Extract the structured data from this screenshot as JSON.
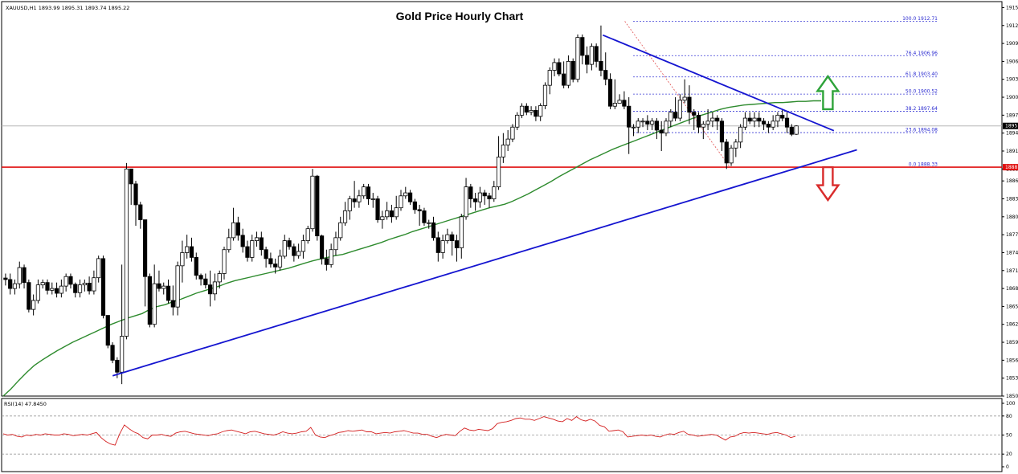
{
  "header": {
    "symbol_ohlc": "XAUUSD,H1  1893.99 1895.31 1893.74 1895.22",
    "rsi_label": "RSI(14) 47.8450"
  },
  "chart_data": {
    "type": "candlestick",
    "title": "Gold Price Hourly Chart",
    "y_range": [
      1850,
      1916
    ],
    "price_ticks": [
      "1915",
      "1912",
      "1909",
      "1906",
      "1903",
      "1900",
      "1897",
      "1894",
      "1891",
      "1888",
      "1886",
      "1883",
      "1880",
      "1877",
      "1874",
      "1871",
      "1868",
      "1865",
      "1862",
      "1859",
      "1856",
      "1853",
      "1850"
    ],
    "current_price_tag": "1895",
    "support_price_tag": "1888",
    "support_level": 1888.3,
    "candles": [
      [
        1869.75,
        1869.5,
        1870.5,
        1868.5
      ],
      [
        1869.5,
        1868.0,
        1870.5,
        1867.0
      ],
      [
        1868.0,
        1868.8,
        1869.5,
        1867.0
      ],
      [
        1868.8,
        1871.5,
        1872.5,
        1868.0
      ],
      [
        1871.5,
        1869.0,
        1872.0,
        1868.0
      ],
      [
        1869.0,
        1864.5,
        1869.5,
        1864.0
      ],
      [
        1864.5,
        1866.0,
        1867.0,
        1863.5
      ],
      [
        1866.0,
        1868.6,
        1869.5,
        1865.5
      ],
      [
        1868.6,
        1869.0,
        1869.5,
        1868.0
      ],
      [
        1869.0,
        1867.7,
        1869.5,
        1867.0
      ],
      [
        1867.7,
        1868.0,
        1869.0,
        1867.0
      ],
      [
        1868.0,
        1867.2,
        1869.0,
        1866.5
      ],
      [
        1867.2,
        1868.4,
        1869.5,
        1866.5
      ],
      [
        1868.4,
        1870.0,
        1870.5,
        1867.5
      ],
      [
        1870.0,
        1868.7,
        1870.5,
        1868.0
      ],
      [
        1868.7,
        1867.3,
        1869.0,
        1866.5
      ],
      [
        1867.3,
        1868.6,
        1869.5,
        1866.5
      ],
      [
        1868.6,
        1868.9,
        1869.5,
        1867.5
      ],
      [
        1868.9,
        1867.6,
        1870.0,
        1867.0
      ],
      [
        1867.6,
        1869.8,
        1871.0,
        1867.0
      ],
      [
        1869.8,
        1873.0,
        1873.5,
        1869.0
      ],
      [
        1873.0,
        1863.5,
        1873.5,
        1863.0
      ],
      [
        1863.5,
        1858.5,
        1863.5,
        1858.0
      ],
      [
        1858.5,
        1856.0,
        1859.0,
        1855.5
      ],
      [
        1856.0,
        1854.0,
        1856.5,
        1853.0
      ],
      [
        1854.0,
        1860.0,
        1872.0,
        1852.0
      ],
      [
        1860.0,
        1888.0,
        1889.0,
        1859.5
      ],
      [
        1888.0,
        1885.5,
        1888.0,
        1882.0
      ],
      [
        1885.5,
        1882.0,
        1886.0,
        1878.5
      ],
      [
        1882.0,
        1879.5,
        1882.5,
        1878.0
      ],
      [
        1879.5,
        1870.0,
        1879.5,
        1865.0
      ],
      [
        1870.0,
        1862.0,
        1870.5,
        1861.5
      ],
      [
        1862.0,
        1868.8,
        1872.0,
        1861.5
      ],
      [
        1868.8,
        1868.0,
        1871.0,
        1867.5
      ],
      [
        1868.0,
        1868.4,
        1869.0,
        1867.0
      ],
      [
        1868.4,
        1866.0,
        1869.5,
        1865.5
      ],
      [
        1866.0,
        1864.9,
        1868.5,
        1863.5
      ],
      [
        1864.9,
        1871.8,
        1872.5,
        1863.5
      ],
      [
        1871.8,
        1874.0,
        1876.0,
        1869.0
      ],
      [
        1874.0,
        1875.0,
        1877.0,
        1873.0
      ],
      [
        1875.0,
        1873.2,
        1876.5,
        1872.5
      ],
      [
        1873.2,
        1870.2,
        1874.0,
        1869.5
      ],
      [
        1870.2,
        1869.6,
        1870.5,
        1868.5
      ],
      [
        1869.6,
        1868.6,
        1870.5,
        1868.0
      ],
      [
        1868.6,
        1867.1,
        1871.0,
        1865.0
      ],
      [
        1867.1,
        1869.1,
        1870.5,
        1866.0
      ],
      [
        1869.1,
        1870.5,
        1871.0,
        1868.0
      ],
      [
        1870.5,
        1874.5,
        1875.0,
        1869.5
      ],
      [
        1874.5,
        1876.5,
        1878.0,
        1874.0
      ],
      [
        1876.5,
        1879.0,
        1881.5,
        1876.0
      ],
      [
        1879.0,
        1876.9,
        1880.0,
        1876.0
      ],
      [
        1876.9,
        1875.0,
        1878.0,
        1874.0
      ],
      [
        1875.0,
        1873.2,
        1876.0,
        1872.5
      ],
      [
        1873.2,
        1876.0,
        1877.0,
        1872.5
      ],
      [
        1876.0,
        1876.5,
        1877.5,
        1875.0
      ],
      [
        1876.5,
        1874.5,
        1877.5,
        1873.5
      ],
      [
        1874.5,
        1873.0,
        1875.0,
        1871.5
      ],
      [
        1873.0,
        1872.1,
        1874.0,
        1871.5
      ],
      [
        1872.1,
        1871.6,
        1873.0,
        1870.5
      ],
      [
        1871.6,
        1873.4,
        1874.5,
        1871.0
      ],
      [
        1873.4,
        1876.0,
        1877.0,
        1873.0
      ],
      [
        1876.0,
        1875.0,
        1876.5,
        1874.5
      ],
      [
        1875.0,
        1873.5,
        1875.5,
        1872.5
      ],
      [
        1873.5,
        1874.2,
        1875.5,
        1873.0
      ],
      [
        1874.2,
        1876.0,
        1877.0,
        1873.0
      ],
      [
        1876.0,
        1878.0,
        1878.5,
        1875.5
      ],
      [
        1878.0,
        1886.8,
        1888.0,
        1877.5
      ],
      [
        1886.8,
        1876.8,
        1887.0,
        1876.0
      ],
      [
        1876.8,
        1873.0,
        1877.0,
        1872.0
      ],
      [
        1873.0,
        1872.0,
        1874.5,
        1871.0
      ],
      [
        1872.0,
        1874.5,
        1875.5,
        1871.5
      ],
      [
        1874.5,
        1876.5,
        1877.5,
        1873.5
      ],
      [
        1876.5,
        1879.0,
        1880.0,
        1876.0
      ],
      [
        1879.0,
        1881.0,
        1882.5,
        1878.5
      ],
      [
        1881.0,
        1883.0,
        1883.5,
        1879.5
      ],
      [
        1883.0,
        1882.5,
        1886.0,
        1881.5
      ],
      [
        1882.5,
        1883.5,
        1884.5,
        1881.5
      ],
      [
        1883.5,
        1885.0,
        1885.5,
        1883.0
      ],
      [
        1885.0,
        1883.0,
        1885.5,
        1882.0
      ],
      [
        1883.0,
        1883.0,
        1884.0,
        1881.5
      ],
      [
        1883.0,
        1879.5,
        1883.5,
        1879.0
      ],
      [
        1879.5,
        1880.0,
        1881.0,
        1878.0
      ],
      [
        1880.0,
        1881.0,
        1882.5,
        1879.5
      ],
      [
        1881.0,
        1880.0,
        1882.0,
        1879.0
      ],
      [
        1880.0,
        1881.5,
        1883.5,
        1879.5
      ],
      [
        1881.5,
        1883.5,
        1884.5,
        1881.0
      ],
      [
        1883.5,
        1884.0,
        1885.0,
        1883.0
      ],
      [
        1884.0,
        1882.5,
        1884.5,
        1882.0
      ],
      [
        1882.5,
        1881.2,
        1883.0,
        1880.5
      ],
      [
        1881.2,
        1881.0,
        1882.0,
        1878.5
      ],
      [
        1881.0,
        1879.0,
        1881.5,
        1878.5
      ],
      [
        1879.0,
        1879.0,
        1879.5,
        1878.0
      ],
      [
        1879.0,
        1876.5,
        1880.0,
        1876.0
      ],
      [
        1876.5,
        1874.0,
        1877.5,
        1872.5
      ],
      [
        1874.0,
        1876.0,
        1877.0,
        1873.0
      ],
      [
        1876.0,
        1877.0,
        1878.0,
        1875.5
      ],
      [
        1877.0,
        1876.0,
        1877.5,
        1873.5
      ],
      [
        1876.0,
        1874.8,
        1877.0,
        1872.5
      ],
      [
        1874.8,
        1880.0,
        1880.5,
        1873.0
      ],
      [
        1880.0,
        1885.0,
        1886.5,
        1879.5
      ],
      [
        1885.0,
        1883.0,
        1885.5,
        1881.5
      ],
      [
        1883.0,
        1882.5,
        1884.0,
        1881.0
      ],
      [
        1882.5,
        1884.0,
        1885.0,
        1881.5
      ],
      [
        1884.0,
        1883.5,
        1884.5,
        1882.0
      ],
      [
        1883.5,
        1883.0,
        1884.0,
        1881.5
      ],
      [
        1883.0,
        1885.0,
        1886.0,
        1882.5
      ],
      [
        1885.0,
        1890.0,
        1893.5,
        1884.5
      ],
      [
        1890.0,
        1892.0,
        1894.0,
        1889.0
      ],
      [
        1892.0,
        1893.0,
        1894.5,
        1891.0
      ],
      [
        1893.0,
        1895.0,
        1895.5,
        1892.5
      ],
      [
        1895.0,
        1897.0,
        1897.5,
        1894.5
      ],
      [
        1897.0,
        1898.5,
        1899.0,
        1896.5
      ],
      [
        1898.5,
        1897.5,
        1899.0,
        1897.0
      ],
      [
        1897.5,
        1897.8,
        1898.5,
        1897.0
      ],
      [
        1897.8,
        1896.8,
        1898.5,
        1896.0
      ],
      [
        1896.8,
        1898.6,
        1899.0,
        1896.0
      ],
      [
        1898.6,
        1902.0,
        1902.5,
        1898.0
      ],
      [
        1902.0,
        1904.5,
        1905.0,
        1900.5
      ],
      [
        1904.5,
        1905.8,
        1906.5,
        1903.5
      ],
      [
        1905.8,
        1903.9,
        1906.5,
        1903.5
      ],
      [
        1903.9,
        1902.0,
        1906.0,
        1901.5
      ],
      [
        1902.0,
        1906.0,
        1907.0,
        1901.5
      ],
      [
        1906.0,
        1903.0,
        1906.5,
        1902.5
      ],
      [
        1903.0,
        1910.0,
        1910.5,
        1902.5
      ],
      [
        1910.0,
        1907.0,
        1910.5,
        1905.5
      ],
      [
        1907.0,
        1905.5,
        1908.5,
        1904.0
      ],
      [
        1905.5,
        1908.5,
        1909.0,
        1904.5
      ],
      [
        1908.5,
        1906.0,
        1909.0,
        1905.0
      ],
      [
        1906.0,
        1904.5,
        1912.0,
        1903.5
      ],
      [
        1904.5,
        1903.0,
        1907.5,
        1902.0
      ],
      [
        1903.0,
        1898.5,
        1904.0,
        1898.0
      ],
      [
        1898.5,
        1899.0,
        1903.0,
        1898.0
      ],
      [
        1899.0,
        1899.5,
        1900.5,
        1899.0
      ],
      [
        1899.5,
        1898.5,
        1901.0,
        1898.0
      ],
      [
        1898.5,
        1895.0,
        1900.0,
        1890.5
      ],
      [
        1895.0,
        1895.0,
        1895.5,
        1893.5
      ],
      [
        1895.0,
        1896.0,
        1896.5,
        1894.0
      ],
      [
        1896.0,
        1896.0,
        1896.5,
        1895.0
      ],
      [
        1896.0,
        1895.5,
        1897.0,
        1894.5
      ],
      [
        1895.5,
        1896.0,
        1896.5,
        1894.5
      ],
      [
        1896.0,
        1894.5,
        1896.5,
        1893.0
      ],
      [
        1894.5,
        1894.0,
        1896.0,
        1891.0
      ],
      [
        1894.0,
        1896.0,
        1896.5,
        1893.5
      ],
      [
        1896.0,
        1897.5,
        1898.0,
        1895.0
      ],
      [
        1897.5,
        1896.5,
        1900.0,
        1896.0
      ],
      [
        1896.5,
        1899.5,
        1900.5,
        1896.0
      ],
      [
        1899.5,
        1900.0,
        1903.0,
        1899.0
      ],
      [
        1900.0,
        1897.5,
        1902.0,
        1895.5
      ],
      [
        1897.5,
        1897.0,
        1898.0,
        1894.5
      ],
      [
        1897.0,
        1895.0,
        1897.5,
        1894.0
      ],
      [
        1895.0,
        1895.5,
        1896.0,
        1893.0
      ],
      [
        1895.5,
        1896.0,
        1898.0,
        1894.5
      ],
      [
        1896.0,
        1896.5,
        1897.5,
        1895.0
      ],
      [
        1896.5,
        1896.0,
        1897.0,
        1894.5
      ],
      [
        1896.0,
        1892.5,
        1896.5,
        1891.0
      ],
      [
        1892.5,
        1889.0,
        1893.0,
        1888.0
      ],
      [
        1889.0,
        1891.5,
        1892.0,
        1888.5
      ],
      [
        1891.5,
        1892.5,
        1893.0,
        1890.0
      ],
      [
        1892.5,
        1895.0,
        1895.5,
        1891.5
      ],
      [
        1895.0,
        1896.5,
        1897.5,
        1894.5
      ],
      [
        1896.5,
        1896.0,
        1897.5,
        1895.5
      ],
      [
        1896.0,
        1896.5,
        1897.5,
        1895.0
      ],
      [
        1896.5,
        1896.0,
        1897.5,
        1895.0
      ],
      [
        1896.0,
        1895.5,
        1896.5,
        1894.5
      ],
      [
        1895.5,
        1895.0,
        1896.0,
        1894.0
      ],
      [
        1895.0,
        1896.0,
        1897.0,
        1894.5
      ],
      [
        1896.0,
        1897.0,
        1897.5,
        1895.0
      ],
      [
        1897.0,
        1896.5,
        1898.0,
        1896.0
      ],
      [
        1896.5,
        1895.0,
        1897.5,
        1894.0
      ],
      [
        1895.0,
        1893.8,
        1895.5,
        1893.5
      ],
      [
        1893.8,
        1895.2,
        1895.3,
        1893.7
      ]
    ],
    "moving_average": [
      1850,
      1851.2,
      1852.6,
      1853.9,
      1855.1,
      1856,
      1856.8,
      1857.6,
      1858.3,
      1859,
      1859.6,
      1860.2,
      1860.8,
      1861.4,
      1862,
      1862.5,
      1863,
      1863.4,
      1863.8,
      1864.5,
      1865,
      1865.3,
      1865.8,
      1866.2,
      1866.7,
      1867.2,
      1867.6,
      1868.0,
      1868.4,
      1868.9,
      1869.3,
      1869.6,
      1869.9,
      1870.2,
      1870.5,
      1870.8,
      1871.1,
      1871.4,
      1871.8,
      1872.2,
      1872.6,
      1872.9,
      1873.2,
      1873.5,
      1873.7,
      1874.1,
      1874.5,
      1874.9,
      1875.3,
      1875.7,
      1876.2,
      1876.6,
      1877.0,
      1877.5,
      1877.9,
      1878.3,
      1878.7,
      1879.1,
      1879.5,
      1879.9,
      1880.3,
      1880.7,
      1881.1,
      1881.5,
      1881.8,
      1882.1,
      1882.6,
      1883.2,
      1883.8,
      1884.5,
      1885.2,
      1885.9,
      1886.7,
      1887.4,
      1888.1,
      1888.8,
      1889.5,
      1890.1,
      1890.7,
      1891.3,
      1891.8,
      1892.3,
      1892.8,
      1893.3,
      1893.8,
      1894.3,
      1894.8,
      1895.3,
      1895.8,
      1896.3,
      1896.8,
      1897.2,
      1897.6,
      1898.0,
      1898.3,
      1898.5,
      1898.7,
      1898.8,
      1898.9,
      1899.0,
      1899.1,
      1899.1,
      1899.2,
      1899.3,
      1899.3,
      1899.4,
      1899.4
    ],
    "fibonacci_levels": [
      {
        "ratio": "100.0",
        "price": "1912.71",
        "y": 1912.71
      },
      {
        "ratio": "76.4",
        "price": "1906.96",
        "y": 1906.96
      },
      {
        "ratio": "61.8",
        "price": "1903.40",
        "y": 1903.4
      },
      {
        "ratio": "50.0",
        "price": "1900.52",
        "y": 1900.52
      },
      {
        "ratio": "38.2",
        "price": "1897.64",
        "y": 1897.64
      },
      {
        "ratio": "23.6",
        "price": "1894.08",
        "y": 1894.08
      },
      {
        "ratio": "0.0",
        "price": "1888.33",
        "y": 1888.33
      }
    ],
    "trendlines": [
      {
        "from": [
          0.111,
          1853.4
        ],
        "to": [
          0.855,
          1891.2
        ]
      },
      {
        "from": [
          0.601,
          1910.4
        ],
        "to": [
          0.832,
          1894.4
        ]
      }
    ],
    "fib_swing": {
      "from": [
        0.623,
        1912.71
      ],
      "to": [
        0.728,
        1888.33
      ]
    },
    "arrows": [
      {
        "direction": "up",
        "color": "#2ea33a",
        "at": [
          0.826,
          1898.0,
          1903.5
        ]
      },
      {
        "direction": "down",
        "color": "#d92b2b",
        "at": [
          0.826,
          1888.3,
          1882.8
        ]
      }
    ],
    "rsi": {
      "label": "RSI(14) 47.8450",
      "range": [
        0,
        100
      ],
      "ticks": [
        "100",
        "80",
        "50",
        "20",
        "0"
      ],
      "levels": [
        80,
        50,
        20
      ],
      "values": [
        52,
        50,
        51,
        48,
        47,
        50,
        49,
        51,
        50,
        52,
        51,
        50,
        50,
        52,
        51,
        49,
        50,
        51,
        50,
        52,
        54,
        46,
        40,
        36,
        34,
        52,
        66,
        60,
        55,
        52,
        46,
        44,
        50,
        50,
        51,
        49,
        48,
        53,
        55,
        56,
        54,
        52,
        51,
        50,
        49,
        51,
        52,
        55,
        57,
        58,
        56,
        54,
        52,
        55,
        56,
        54,
        52,
        51,
        50,
        52,
        55,
        53,
        52,
        53,
        55,
        56,
        62,
        50,
        47,
        46,
        49,
        51,
        54,
        55,
        57,
        56,
        57,
        58,
        55,
        55,
        52,
        53,
        54,
        53,
        55,
        56,
        57,
        55,
        53,
        53,
        51,
        51,
        48,
        46,
        49,
        51,
        50,
        49,
        56,
        61,
        58,
        57,
        59,
        58,
        57,
        60,
        68,
        70,
        71,
        73,
        76,
        77,
        75,
        75,
        73,
        76,
        79,
        77,
        75,
        72,
        71,
        76,
        73,
        79,
        74,
        72,
        75,
        72,
        65,
        63,
        56,
        57,
        58,
        55,
        47,
        48,
        49,
        50,
        49,
        50,
        48,
        47,
        50,
        52,
        51,
        54,
        56,
        51,
        50,
        48,
        49,
        50,
        51,
        50,
        46,
        42,
        47,
        48,
        52,
        54,
        53,
        54,
        53,
        52,
        51,
        53,
        54,
        52,
        50,
        46,
        48
      ]
    }
  }
}
